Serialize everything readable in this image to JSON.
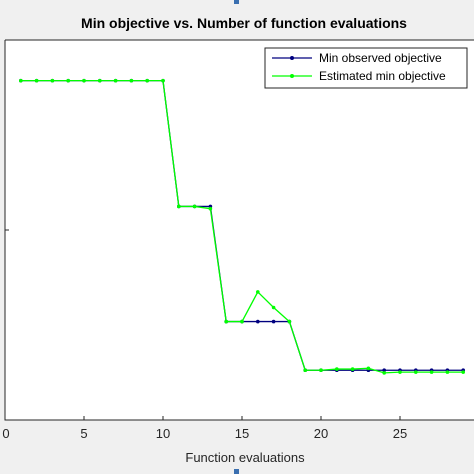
{
  "chart_data": {
    "type": "line",
    "title": "Min objective vs. Number of function evaluations",
    "xlabel": "Function evaluations",
    "ylabel": "",
    "xlim": [
      0,
      29
    ],
    "ylim": [
      0,
      1
    ],
    "xticks": [
      0,
      5,
      10,
      15,
      20,
      25
    ],
    "xtick_labels": [
      "0",
      "5",
      "10",
      "15",
      "20",
      "25"
    ],
    "grid": false,
    "legend_position": "top-right",
    "series": [
      {
        "name": "Min observed objective",
        "color": "#00007f",
        "x": [
          1,
          2,
          3,
          4,
          5,
          6,
          7,
          8,
          9,
          10,
          11,
          12,
          13,
          14,
          15,
          16,
          17,
          18,
          19,
          20,
          21,
          22,
          23,
          24,
          25,
          26,
          27,
          28,
          29
        ],
        "y": [
          0.893,
          0.893,
          0.893,
          0.893,
          0.893,
          0.893,
          0.893,
          0.893,
          0.893,
          0.893,
          0.562,
          0.562,
          0.562,
          0.259,
          0.259,
          0.259,
          0.259,
          0.259,
          0.131,
          0.131,
          0.131,
          0.131,
          0.131,
          0.131,
          0.131,
          0.131,
          0.131,
          0.131,
          0.131
        ]
      },
      {
        "name": "Estimated min objective",
        "color": "#00ff00",
        "x": [
          1,
          2,
          3,
          4,
          5,
          6,
          7,
          8,
          9,
          10,
          11,
          12,
          13,
          14,
          15,
          16,
          17,
          18,
          19,
          20,
          21,
          22,
          23,
          24,
          25,
          26,
          27,
          28,
          29
        ],
        "y": [
          0.893,
          0.893,
          0.893,
          0.893,
          0.893,
          0.893,
          0.893,
          0.893,
          0.893,
          0.893,
          0.562,
          0.562,
          0.556,
          0.259,
          0.259,
          0.337,
          0.296,
          0.259,
          0.131,
          0.131,
          0.134,
          0.134,
          0.136,
          0.124,
          0.126,
          0.126,
          0.126,
          0.126,
          0.126
        ]
      }
    ]
  }
}
